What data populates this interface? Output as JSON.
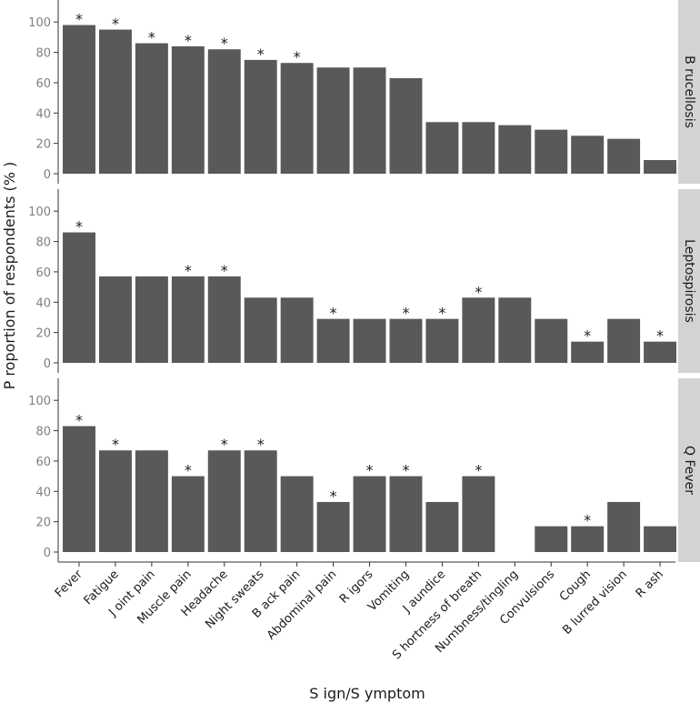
{
  "chart_data": {
    "type": "bar",
    "xlabel": "S ign/S ymptom",
    "ylabel": "P roportion of respondents (% )",
    "ylim": [
      0,
      115
    ],
    "yticks": [
      0,
      20,
      40,
      60,
      80,
      100
    ],
    "grid": false,
    "categories": [
      "Fever",
      "Fatigue",
      "J oint pain",
      "Muscle pain",
      "Headache",
      "Night sweats",
      "B ack pain",
      "Abdominal pain",
      "R igors",
      "Vomiting",
      "J aundice",
      "S hortness of breath",
      "Numbness/tingling",
      "Convulsions",
      "Cough",
      "B lurred vision",
      "R ash"
    ],
    "significance_marker": "*",
    "bar_color": "#595959",
    "strip_color": "#d3d3d3",
    "panels": [
      {
        "name": "B rucellosis",
        "values": [
          98,
          95,
          86,
          84,
          82,
          75,
          73,
          70,
          70,
          63,
          34,
          34,
          32,
          29,
          25,
          23,
          9
        ],
        "significant": [
          true,
          true,
          true,
          true,
          true,
          true,
          true,
          false,
          false,
          false,
          false,
          false,
          false,
          false,
          false,
          false,
          false
        ]
      },
      {
        "name": "Leptospirosis",
        "values": [
          86,
          57,
          57,
          57,
          57,
          43,
          43,
          29,
          29,
          29,
          29,
          43,
          43,
          29,
          14,
          29,
          14
        ],
        "significant": [
          true,
          false,
          false,
          true,
          true,
          false,
          false,
          true,
          false,
          true,
          true,
          true,
          false,
          false,
          true,
          false,
          true
        ]
      },
      {
        "name": "Q Fever",
        "values": [
          83,
          67,
          67,
          50,
          67,
          67,
          50,
          33,
          50,
          50,
          33,
          50,
          0,
          17,
          17,
          33,
          17
        ],
        "significant": [
          true,
          true,
          false,
          true,
          true,
          true,
          false,
          true,
          true,
          true,
          false,
          true,
          false,
          false,
          true,
          false,
          false
        ]
      }
    ]
  }
}
